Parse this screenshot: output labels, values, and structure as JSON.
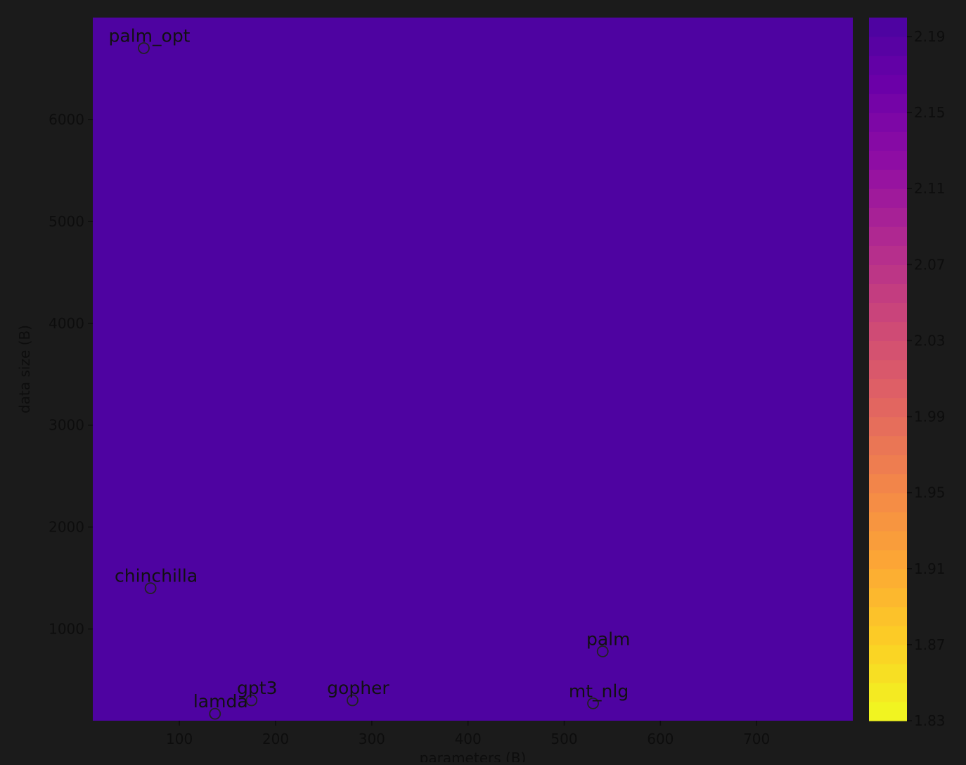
{
  "chart_data": {
    "type": "heatmap",
    "subtype": "filled-contour-with-scatter",
    "title": "",
    "xlabel": "parameters (B)",
    "ylabel": "data size (B)",
    "xlim": [
      10,
      800
    ],
    "ylim": [
      100,
      7000
    ],
    "x_ticks": [
      100,
      200,
      300,
      400,
      500,
      600,
      700
    ],
    "y_ticks": [
      1000,
      2000,
      3000,
      4000,
      5000,
      6000
    ],
    "colormap": "plasma_r",
    "colorbar": {
      "range": [
        1.83,
        2.2
      ],
      "ticks": [
        "1.83",
        "1.87",
        "1.91",
        "1.95",
        "1.99",
        "2.03",
        "2.07",
        "2.11",
        "2.15",
        "2.19"
      ],
      "levels": 37
    },
    "points": [
      {
        "name": "palm_opt",
        "x": 63,
        "y": 6700
      },
      {
        "name": "chinchilla",
        "x": 70,
        "y": 1400
      },
      {
        "name": "palm",
        "x": 540,
        "y": 780
      },
      {
        "name": "gpt3",
        "x": 175,
        "y": 300
      },
      {
        "name": "lamda",
        "x": 137,
        "y": 168
      },
      {
        "name": "gopher",
        "x": 280,
        "y": 300
      },
      {
        "name": "mt_nlg",
        "x": 530,
        "y": 270
      }
    ]
  },
  "colors": {
    "background": "#1b1b1b",
    "axis_text": "#0d0d0d",
    "marker_edge": "#222222"
  }
}
